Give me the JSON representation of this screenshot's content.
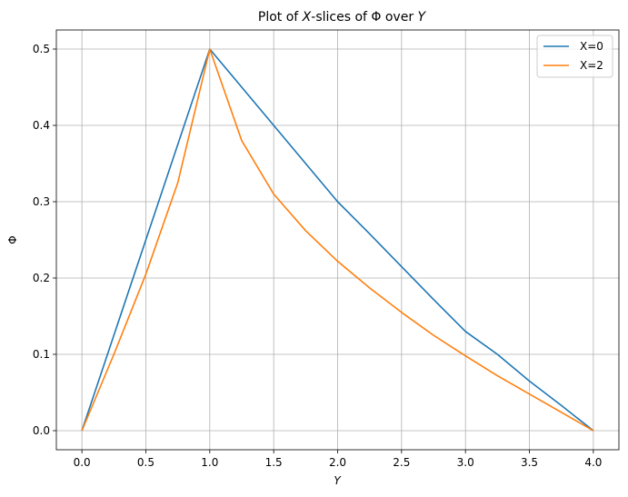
{
  "chart_data": {
    "type": "line",
    "title_parts": [
      "Plot of ",
      "X",
      "-slices of Φ over ",
      "Y"
    ],
    "xlabel": "Y",
    "ylabel": "Φ",
    "xlim": [
      -0.2,
      4.2
    ],
    "ylim": [
      -0.025,
      0.525
    ],
    "xticks": [
      0.0,
      0.5,
      1.0,
      1.5,
      2.0,
      2.5,
      3.0,
      3.5,
      4.0
    ],
    "xtick_labels": [
      "0.0",
      "0.5",
      "1.0",
      "1.5",
      "2.0",
      "2.5",
      "3.0",
      "3.5",
      "4.0"
    ],
    "yticks": [
      0.0,
      0.1,
      0.2,
      0.3,
      0.4,
      0.5
    ],
    "ytick_labels": [
      "0.0",
      "0.1",
      "0.2",
      "0.3",
      "0.4",
      "0.5"
    ],
    "grid": true,
    "legend_position": "top-right",
    "series": [
      {
        "name": "X=0",
        "color": "#1f77b4",
        "x": [
          0.0,
          0.25,
          0.5,
          0.75,
          1.0,
          1.25,
          1.5,
          1.75,
          2.0,
          2.25,
          2.5,
          2.75,
          3.0,
          3.25,
          3.5,
          3.75,
          4.0
        ],
        "y": [
          0.0,
          0.125,
          0.25,
          0.375,
          0.5,
          0.45,
          0.4,
          0.35,
          0.3,
          0.258,
          0.215,
          0.172,
          0.13,
          0.1,
          0.065,
          0.033,
          0.0
        ]
      },
      {
        "name": "X=2",
        "color": "#ff7f0e",
        "x": [
          0.0,
          0.25,
          0.5,
          0.75,
          1.0,
          1.25,
          1.5,
          1.75,
          2.0,
          2.25,
          2.5,
          2.75,
          3.0,
          3.25,
          3.5,
          3.75,
          4.0
        ],
        "y": [
          0.0,
          0.1,
          0.205,
          0.325,
          0.5,
          0.38,
          0.31,
          0.262,
          0.222,
          0.187,
          0.155,
          0.125,
          0.098,
          0.072,
          0.048,
          0.024,
          0.0
        ]
      }
    ]
  }
}
